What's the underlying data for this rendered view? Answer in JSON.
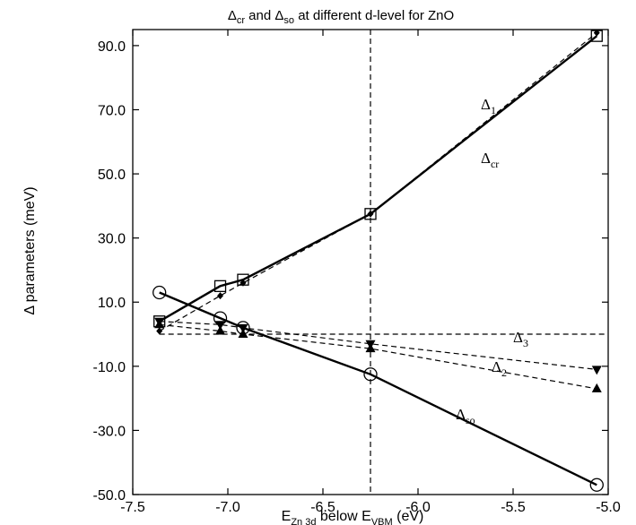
{
  "chart_data": {
    "type": "line",
    "title": {
      "pre": "Δ",
      "sub1": "cr",
      "mid": " and Δ",
      "sub2": "so",
      "post": " at different d-level for ZnO"
    },
    "xlabel": {
      "pre": "E",
      "sub1": "Zn 3d",
      "mid": " below E",
      "sub2": "VBM",
      "post": " (eV)"
    },
    "ylabel": "Δ  parameters (meV)",
    "xlim": [
      -7.5,
      -5.0
    ],
    "ylim": [
      -50.0,
      95.0
    ],
    "x_ticks": [
      "-7.5",
      "-7.0",
      "-6.5",
      "-6.0",
      "-5.5",
      "-5.0"
    ],
    "x_tick_values": [
      -7.5,
      -7.0,
      -6.5,
      -6.0,
      -5.5,
      -5.0
    ],
    "y_ticks": [
      "-50.0",
      "-30.0",
      "-10.0",
      "10.0",
      "30.0",
      "50.0",
      "70.0",
      "90.0"
    ],
    "y_tick_values": [
      -50,
      -30,
      -10,
      10,
      30,
      50,
      70,
      90
    ],
    "grid": false,
    "reference_lines": {
      "vertical_x": -6.25,
      "horizontal_y": 0
    },
    "series": [
      {
        "name": "Δcr",
        "label_main": "Δ",
        "label_sub": "cr",
        "style": "solid",
        "marker": "square",
        "x": [
          -7.36,
          -7.04,
          -6.92,
          -6.25,
          -5.06
        ],
        "y": [
          4,
          15,
          17,
          37.5,
          93
        ]
      },
      {
        "name": "Δ1",
        "label_main": "Δ",
        "label_sub": "1",
        "style": "dashed",
        "marker": "diamond",
        "x": [
          -7.36,
          -7.04,
          -6.92,
          -6.25,
          -5.06
        ],
        "y": [
          1,
          12,
          16,
          37.5,
          94
        ]
      },
      {
        "name": "Δso",
        "label_main": "Δ",
        "label_sub": "so",
        "style": "solid",
        "marker": "circle",
        "x": [
          -7.36,
          -7.04,
          -6.92,
          -6.25,
          -5.06
        ],
        "y": [
          13,
          5,
          2,
          -12.5,
          -47
        ]
      },
      {
        "name": "Δ3",
        "label_main": "Δ",
        "label_sub": "3",
        "style": "dashed",
        "marker": "triangle-down",
        "x": [
          -7.36,
          -7.04,
          -6.92,
          -6.25,
          -5.06
        ],
        "y": [
          4,
          3,
          2,
          -3,
          -11
        ]
      },
      {
        "name": "Δ2",
        "label_main": "Δ",
        "label_sub": "2",
        "style": "dashed",
        "marker": "triangle-up",
        "x": [
          -7.36,
          -7.04,
          -6.92,
          -6.25,
          -5.06
        ],
        "y": [
          3,
          1,
          0,
          -4.5,
          -17
        ]
      }
    ]
  }
}
